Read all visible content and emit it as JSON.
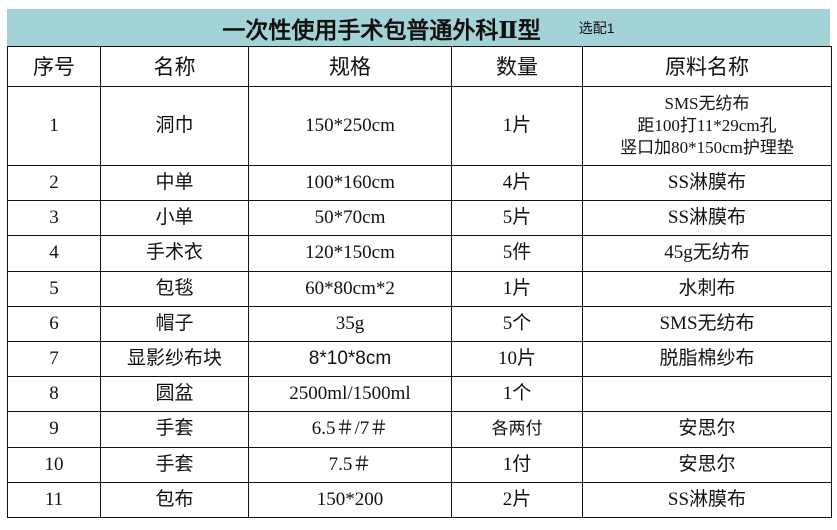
{
  "title": {
    "main": "一次性使用手术包普通外科Ⅱ型",
    "sub": "选配1",
    "background": "#a3d3d6"
  },
  "table": {
    "headers": [
      "序号",
      "名称",
      "规格",
      "数量",
      "原料名称"
    ],
    "rows": [
      {
        "no": "1",
        "name": "洞巾",
        "spec": "150*250cm",
        "qty": "1片",
        "material": [
          "SMS无纺布",
          "距100打11*29cm孔",
          "竖口加80*150cm护理垫"
        ]
      },
      {
        "no": "2",
        "name": "中单",
        "spec": "100*160cm",
        "qty": "4片",
        "material": "SS淋膜布"
      },
      {
        "no": "3",
        "name": "小单",
        "spec": "50*70cm",
        "qty": "5片",
        "material": "SS淋膜布"
      },
      {
        "no": "4",
        "name": "手术衣",
        "spec": "120*150cm",
        "qty": "5件",
        "material": "45g无纺布"
      },
      {
        "no": "5",
        "name": "包毯",
        "spec": "60*80cm*2",
        "qty": "1片",
        "material": "水刺布"
      },
      {
        "no": "6",
        "name": "帽子",
        "spec": "35g",
        "qty": "5个",
        "material": "SMS无纺布"
      },
      {
        "no": "7",
        "name": "显影纱布块",
        "spec": "8*10*8cm",
        "qty": "10片",
        "material": "脱脂棉纱布"
      },
      {
        "no": "8",
        "name": "圆盆",
        "spec": "2500ml/1500ml",
        "qty": "1个",
        "material": ""
      },
      {
        "no": "9",
        "name": "手套",
        "spec": "6.5＃/7＃",
        "qty": "各两付",
        "material": "安思尔"
      },
      {
        "no": "10",
        "name": "手套",
        "spec": "7.5＃",
        "qty": "1付",
        "material": "安思尔"
      },
      {
        "no": "11",
        "name": "包布",
        "spec": "150*200",
        "qty": "2片",
        "material": "SS淋膜布"
      }
    ]
  }
}
